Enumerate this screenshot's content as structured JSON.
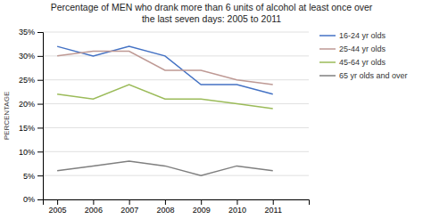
{
  "chart_data": {
    "type": "line",
    "title": "Percentage of MEN who drank more than 6 units of alcohol at least once over\nthe last seven days: 2005 to 2011",
    "ylabel": "PERCENTAGE",
    "x": [
      2005,
      2006,
      2007,
      2008,
      2009,
      2010,
      2011
    ],
    "series": [
      {
        "name": "16-24 yr olds",
        "color": "#4472C4",
        "values": [
          32,
          30,
          32,
          30,
          24,
          24,
          22
        ]
      },
      {
        "name": "25-44 yr olds",
        "color": "#BE9994",
        "values": [
          30,
          31,
          31,
          27,
          27,
          25,
          24
        ]
      },
      {
        "name": "45-64 yr olds",
        "color": "#9BBB59",
        "values": [
          22,
          21,
          24,
          21,
          21,
          20,
          19
        ]
      },
      {
        "name": "65 yr olds and over",
        "color": "#7F7F7F",
        "values": [
          6,
          7,
          8,
          7,
          5,
          7,
          6
        ]
      }
    ],
    "xlim": [
      2004.6,
      2012.0
    ],
    "xticks": [
      2005,
      2006,
      2007,
      2008,
      2009,
      2010,
      2011
    ],
    "ylim": [
      0,
      35
    ],
    "yticks": [
      {
        "value": 0,
        "label": "0%"
      },
      {
        "value": 5,
        "label": "5%"
      },
      {
        "value": 10,
        "label": "10%"
      },
      {
        "value": 15,
        "label": "15%"
      },
      {
        "value": 20,
        "label": "20%"
      },
      {
        "value": 25,
        "label": "25%"
      },
      {
        "value": 30,
        "label": "30%"
      },
      {
        "value": 35,
        "label": "35%"
      }
    ],
    "grid": true,
    "legend": "right"
  }
}
